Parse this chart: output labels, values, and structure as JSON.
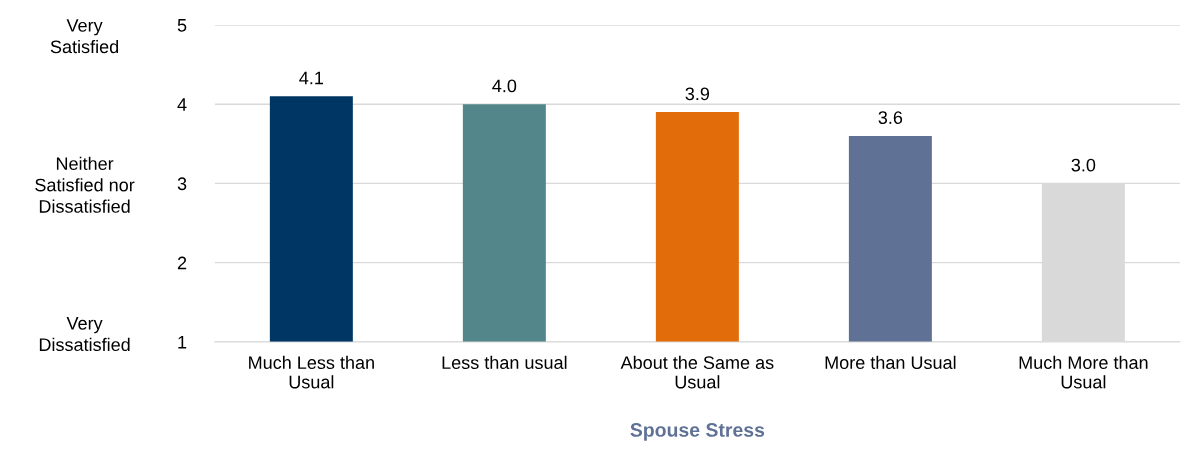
{
  "chart_data": {
    "type": "bar",
    "categories": [
      "Much Less than\nUsual",
      "Less than usual",
      "About the Same as\nUsual",
      "More than Usual",
      "Much More than\nUsual"
    ],
    "values": [
      4.1,
      4.0,
      3.9,
      3.6,
      3.0
    ],
    "colors": [
      "#003664",
      "#52868a",
      "#e36c0a",
      "#607196",
      "#d9d9d9"
    ],
    "xlabel": "Spouse Stress",
    "value_labels": [
      "4.1",
      "4.0",
      "3.9",
      "3.6",
      "3.0"
    ],
    "ylim": [
      1,
      5
    ],
    "yticks": [
      1,
      2,
      3,
      4,
      5
    ],
    "grid": "y",
    "annotations": [
      "Very\nSatisfied",
      "Neither\nSatisfied nor\nDissatisfied",
      "Very\nDissatisfied"
    ]
  }
}
